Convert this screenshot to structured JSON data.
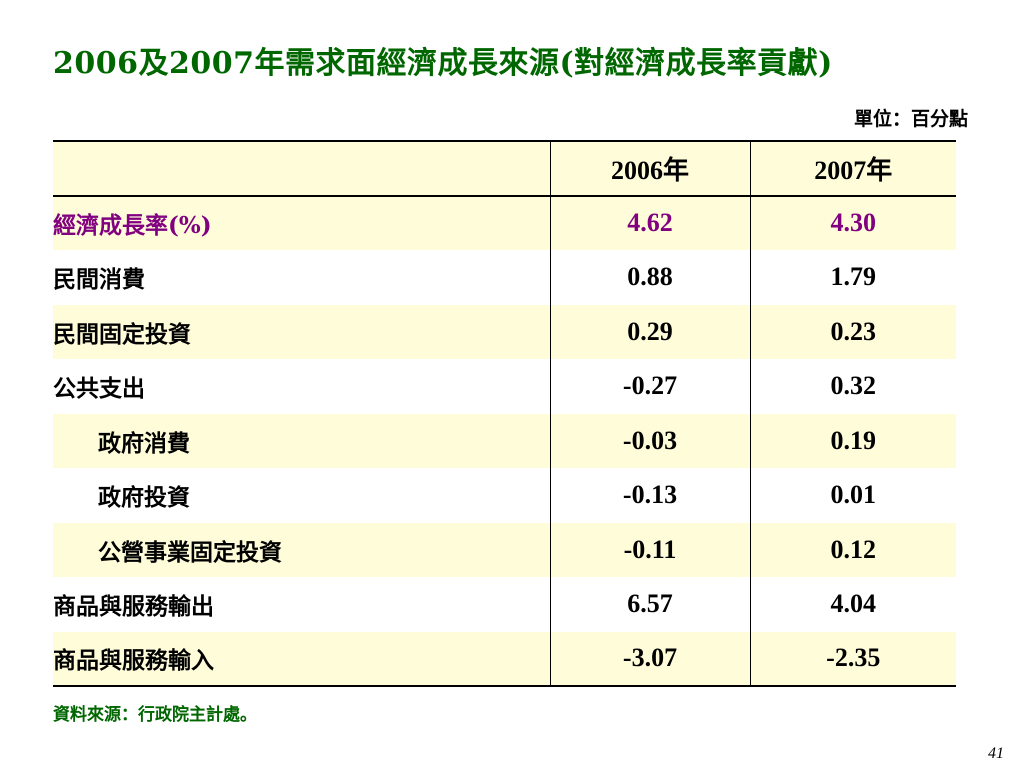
{
  "slide": {
    "title": "2006及2007年需求面經濟成長來源(對經濟成長率貢獻)",
    "unit": "單位：百分點",
    "source": "資料來源：行政院主計處。",
    "page_number": "41"
  },
  "table": {
    "headers": [
      "",
      "2006年",
      "2007年"
    ],
    "rows": [
      {
        "label": "經濟成長率(%)",
        "v2006": "4.62",
        "v2007": "4.30"
      },
      {
        "label": "民間消費",
        "v2006": "0.88",
        "v2007": "1.79"
      },
      {
        "label": "民間固定投資",
        "v2006": "0.29",
        "v2007": "0.23"
      },
      {
        "label": "公共支出",
        "v2006": "-0.27",
        "v2007": "0.32"
      },
      {
        "label": "政府消費",
        "v2006": "-0.03",
        "v2007": "0.19"
      },
      {
        "label": "政府投資",
        "v2006": "-0.13",
        "v2007": "0.01"
      },
      {
        "label": "公營事業固定投資",
        "v2006": "-0.11",
        "v2007": "0.12"
      },
      {
        "label": "商品與服務輸出",
        "v2006": "6.57",
        "v2007": "4.04"
      },
      {
        "label": "商品與服務輸入",
        "v2006": "-3.07",
        "v2007": "-2.35"
      }
    ]
  },
  "colors": {
    "title": "#006600",
    "accent_row": "#800080",
    "band": "#fffcd9"
  }
}
